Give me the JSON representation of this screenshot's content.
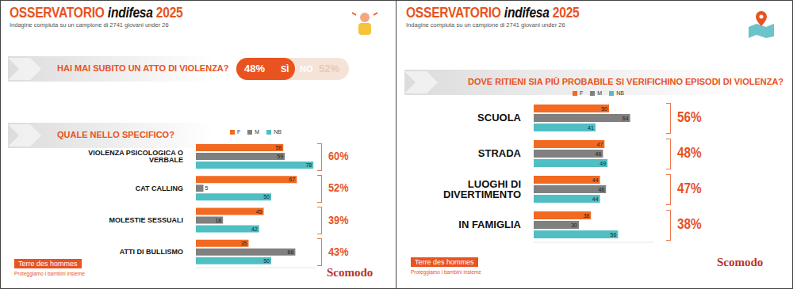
{
  "chart_data": [
    {
      "type": "bar",
      "orientation": "horizontal",
      "title": "OSSERVATORIO indifesa 2025",
      "subtitle": "Indagine compiuta su un campione di 2741 giovani under 26",
      "poll": {
        "question": "HAI MAI SUBITO UN ATTO DI VIOLENZA?",
        "answers": [
          {
            "label": "SÌ",
            "value": 48,
            "value_label": "48%"
          },
          {
            "label": "NO",
            "value": 52,
            "value_label": "52%"
          }
        ]
      },
      "question": "QUALE NELLO SPECIFICO?",
      "categories": [
        "VIOLENZA PSICOLOGICA O VERBALE",
        "CAT CALLING",
        "MOLESTIE SESSUALI",
        "ATTI DI BULLISMO"
      ],
      "series": [
        {
          "name": "F",
          "color": "#f26a21",
          "values": [
            58,
            67,
            45,
            35
          ]
        },
        {
          "name": "M",
          "color": "#808080",
          "values": [
            59,
            5,
            18,
            66
          ]
        },
        {
          "name": "NB",
          "color": "#4fbfc4",
          "values": [
            78,
            50,
            42,
            50
          ]
        }
      ],
      "totals": {
        "values": [
          60,
          52,
          39,
          43
        ],
        "value_labels": [
          "60%",
          "52%",
          "39%",
          "43%"
        ]
      },
      "xlim": [
        0,
        80
      ],
      "data_labels": true,
      "tick_labels": "y",
      "legend": "top",
      "footer": [
        "Terre des hommes",
        "Proteggiamo i bambini insieme",
        "Scomodo"
      ]
    },
    {
      "type": "bar",
      "orientation": "horizontal",
      "title": "OSSERVATORIO indifesa 2025",
      "subtitle": "Indagine compiuta su un campione di 2741 giovani under 26",
      "question": "DOVE RITIENI SIA PIÙ PROBABILE SI VERIFICHINO EPISODI DI VIOLENZA?",
      "categories": [
        "SCUOLA",
        "STRADA",
        "LUOGHI DI DIVERTIMENTO",
        "IN FAMIGLIA"
      ],
      "series": [
        {
          "name": "F",
          "color": "#f26a21",
          "values": [
            50,
            47,
            44,
            38
          ]
        },
        {
          "name": "M",
          "color": "#808080",
          "values": [
            64,
            46,
            48,
            30
          ]
        },
        {
          "name": "NB",
          "color": "#4fbfc4",
          "values": [
            41,
            49,
            44,
            56
          ]
        }
      ],
      "totals": {
        "values": [
          56,
          48,
          47,
          38
        ],
        "value_labels": [
          "56%",
          "48%",
          "47%",
          "38%"
        ]
      },
      "xlim": [
        0,
        80
      ],
      "data_labels": true,
      "tick_labels": "y",
      "legend": "top",
      "footer": [
        "Terre des hommes",
        "Proteggiamo i bambini insieme",
        "Scomodo"
      ]
    }
  ]
}
